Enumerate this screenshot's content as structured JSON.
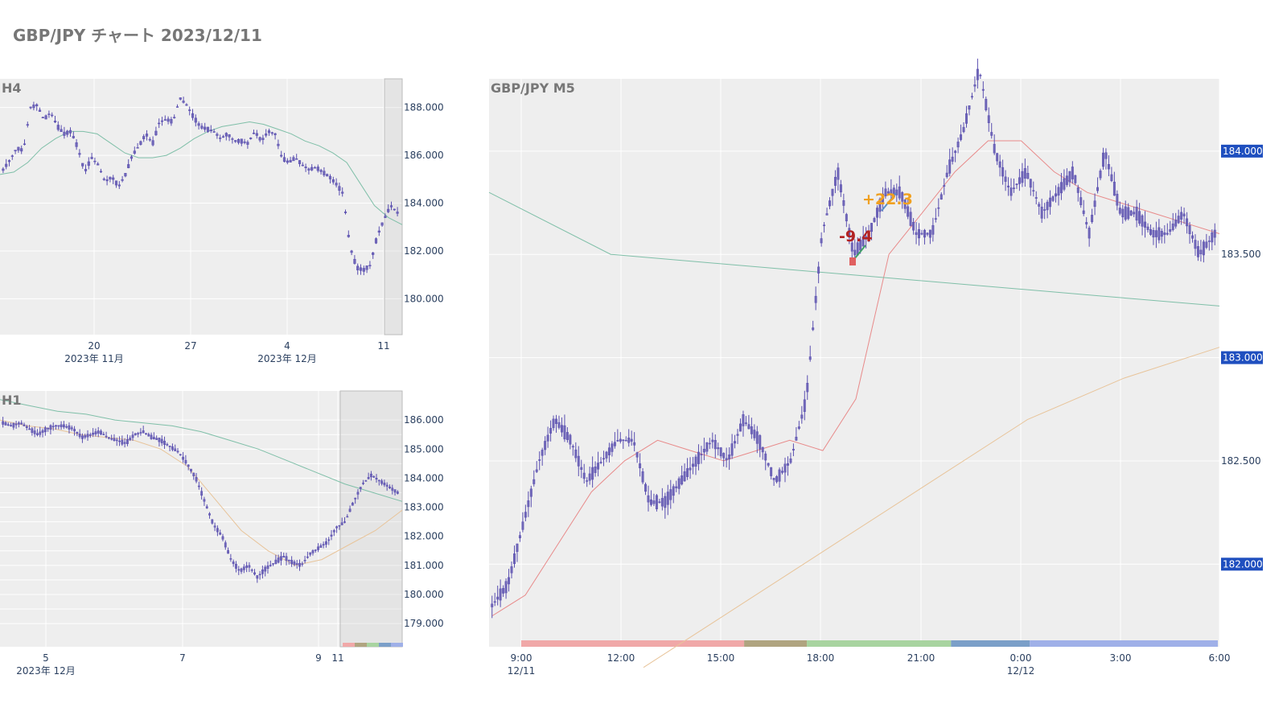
{
  "page_title": "GBP/JPY チャート 2023/12/11",
  "colors": {
    "candle": "#7067b8",
    "candle_wick": "#5a4fb0",
    "ma_short": "#e88a8a",
    "ma_mid": "#e8c49a",
    "ma_long": "#7fbfa8",
    "price_badge": "#1f4fbf",
    "plot_bg": "#eeeeee",
    "ann_loss": "#b22222",
    "ann_gain": "#f0a020"
  },
  "chart_data": [
    {
      "id": "h4",
      "type": "candlestick",
      "title": "H4",
      "xlabel": "",
      "ylabel": "",
      "x_ticks": [
        {
          "label": "20",
          "sublabel": "2023年 11月"
        },
        {
          "label": "27",
          "sublabel": ""
        },
        {
          "label": "4",
          "sublabel": "2023年 12月"
        },
        {
          "label": "11",
          "sublabel": ""
        }
      ],
      "y_ticks": [
        "188.000",
        "186.000",
        "184.000",
        "182.000",
        "180.000"
      ],
      "ylim": [
        178.5,
        189.2
      ],
      "grid": true,
      "series": [
        {
          "name": "",
          "kind": "ohlc",
          "values": [
            185.4,
            185.8,
            186.3,
            186.2,
            188.0,
            188.1,
            187.5,
            187.8,
            187.2,
            186.9,
            187.0,
            186.3,
            185.3,
            185.9,
            185.6,
            184.9,
            185.1,
            184.7,
            185.2,
            186.0,
            186.4,
            186.9,
            186.5,
            187.4,
            187.5,
            187.4,
            188.4,
            188.1,
            187.6,
            187.2,
            187.1,
            187.0,
            186.7,
            186.9,
            186.6,
            186.6,
            186.5,
            187.0,
            186.6,
            187.0,
            186.9,
            185.9,
            185.7,
            185.9,
            185.6,
            185.4,
            185.5,
            185.3,
            185.1,
            184.8,
            184.4,
            182.2,
            181.3,
            181.2,
            181.4,
            182.6,
            183.3,
            183.9,
            183.6
          ]
        },
        {
          "name": "",
          "kind": "ma",
          "values": [
            185.2,
            185.3,
            185.7,
            186.3,
            186.7,
            187.0,
            187.0,
            186.9,
            186.5,
            186.1,
            185.9,
            185.9,
            186.0,
            186.3,
            186.7,
            187.0,
            187.2,
            187.3,
            187.4,
            187.3,
            187.1,
            186.9,
            186.6,
            186.4,
            186.1,
            185.7,
            184.8,
            183.9,
            183.4,
            183.1
          ]
        }
      ]
    },
    {
      "id": "h1",
      "type": "candlestick",
      "title": "H1",
      "xlabel": "",
      "ylabel": "",
      "x_ticks": [
        {
          "label": "5",
          "sublabel": "2023年 12月"
        },
        {
          "label": "7",
          "sublabel": ""
        },
        {
          "label": "9",
          "sublabel": ""
        },
        {
          "label": "11",
          "sublabel": ""
        }
      ],
      "y_ticks": [
        "186.000",
        "185.000",
        "184.000",
        "183.000",
        "182.000",
        "181.000",
        "180.000",
        "179.000"
      ],
      "ylim": [
        178.2,
        187.0
      ],
      "grid": true,
      "series": [
        {
          "name": "",
          "kind": "ohlc",
          "values": [
            185.9,
            185.8,
            185.9,
            185.7,
            185.5,
            185.7,
            185.8,
            185.8,
            185.7,
            185.4,
            185.5,
            185.6,
            185.4,
            185.3,
            185.2,
            185.5,
            185.6,
            185.4,
            185.3,
            185.1,
            184.9,
            184.5,
            184.0,
            183.2,
            182.4,
            182.0,
            181.2,
            180.8,
            181.0,
            180.6,
            180.9,
            181.1,
            181.3,
            181.1,
            181.0,
            181.4,
            181.6,
            181.8,
            182.3,
            182.5,
            183.2,
            183.8,
            184.1,
            183.9,
            183.7,
            183.5
          ]
        },
        {
          "name": "",
          "kind": "ma",
          "values": [
            186.7,
            186.5,
            186.3,
            186.2,
            186.0,
            185.9,
            185.8,
            185.6,
            185.3,
            185.0,
            184.6,
            184.2,
            183.8,
            183.5,
            183.2
          ]
        },
        {
          "name": "",
          "kind": "ma",
          "values": [
            186.0,
            185.8,
            185.7,
            185.5,
            185.4,
            185.3,
            185.0,
            184.4,
            183.3,
            182.2,
            181.5,
            181.0,
            181.2,
            181.7,
            182.2,
            182.9
          ]
        }
      ]
    },
    {
      "id": "m5",
      "type": "candlestick",
      "title": "GBP/JPY M5",
      "xlabel": "",
      "ylabel": "",
      "x_ticks": [
        {
          "label": "9:00",
          "sublabel": "12/11"
        },
        {
          "label": "12:00",
          "sublabel": ""
        },
        {
          "label": "15:00",
          "sublabel": ""
        },
        {
          "label": "18:00",
          "sublabel": ""
        },
        {
          "label": "21:00",
          "sublabel": ""
        },
        {
          "label": "0:00",
          "sublabel": "12/12"
        },
        {
          "label": "3:00",
          "sublabel": ""
        },
        {
          "label": "6:00",
          "sublabel": ""
        }
      ],
      "y_ticks": [
        "183.500",
        "182.500"
      ],
      "price_badges": [
        "184.000",
        "183.000",
        "182.000"
      ],
      "ylim": [
        181.6,
        184.35
      ],
      "grid": true,
      "annotations": [
        {
          "text": "-9.4",
          "tone": "loss"
        },
        {
          "text": "+22.3",
          "tone": "gain"
        }
      ],
      "session_bands": [
        {
          "color": "#f0a8a8",
          "from": 0.0,
          "to": 0.32
        },
        {
          "color": "#b0a480",
          "from": 0.32,
          "to": 0.41
        },
        {
          "color": "#a8d4a0",
          "from": 0.41,
          "to": 0.617
        },
        {
          "color": "#7b9fc8",
          "from": 0.617,
          "to": 0.73
        },
        {
          "color": "#9fb0e8",
          "from": 0.73,
          "to": 1.0
        }
      ],
      "series": [
        {
          "name": "",
          "kind": "ohlc",
          "values": [
            181.8,
            181.9,
            182.2,
            182.5,
            182.7,
            182.6,
            182.4,
            182.5,
            182.6,
            182.6,
            182.3,
            182.3,
            182.4,
            182.5,
            182.6,
            182.5,
            182.7,
            182.6,
            182.4,
            182.5,
            182.8,
            183.6,
            183.9,
            183.5,
            183.6,
            183.8,
            183.8,
            183.6,
            183.6,
            183.9,
            184.1,
            184.4,
            184.0,
            183.8,
            183.9,
            183.7,
            183.8,
            183.9,
            183.6,
            184.0,
            183.7,
            183.7,
            183.6,
            183.6,
            183.7,
            183.5,
            183.6
          ]
        },
        {
          "name": "",
          "kind": "ma",
          "values": [
            181.75,
            181.85,
            182.1,
            182.35,
            182.5,
            182.6,
            182.55,
            182.5,
            182.55,
            182.6,
            182.55,
            182.8,
            183.5,
            183.7,
            183.9,
            184.05,
            184.05,
            183.9,
            183.8,
            183.75,
            183.7,
            183.65,
            183.6
          ]
        },
        {
          "name": "",
          "kind": "ma",
          "values": [
            183.8,
            183.5,
            183.45,
            183.4,
            183.35,
            183.3,
            183.25
          ]
        },
        {
          "name": "",
          "kind": "ma",
          "values": [
            181.5,
            181.8,
            182.1,
            182.4,
            182.7,
            182.9,
            183.05
          ]
        }
      ]
    }
  ]
}
